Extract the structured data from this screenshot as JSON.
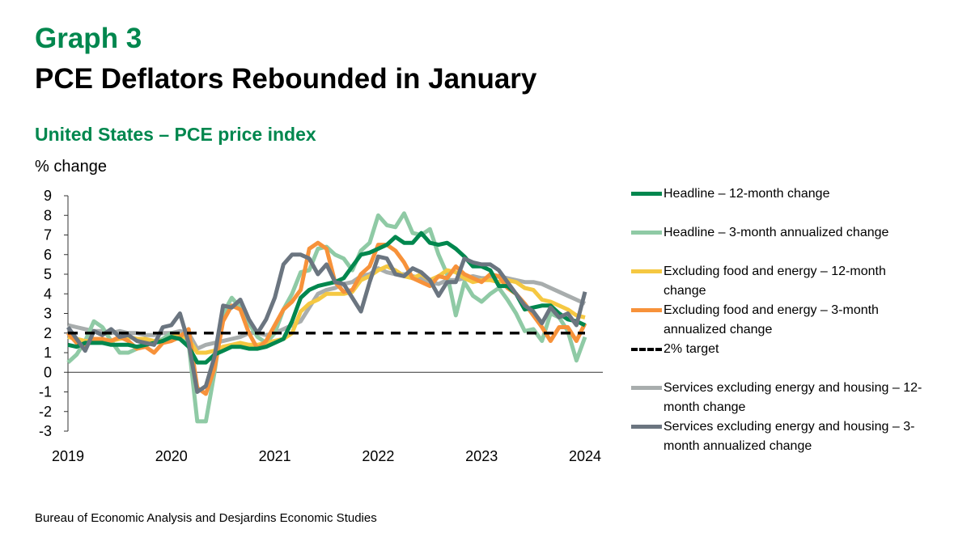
{
  "header": {
    "graph_label": "Graph 3",
    "title": "PCE Deflators Rebounded in January",
    "subtitle": "United States – PCE price index",
    "unit": "% change"
  },
  "footer": {
    "source": "Bureau of Economic Analysis and Desjardins Economic Studies"
  },
  "chart_data": {
    "type": "line",
    "x_start": "2019-01",
    "frequency": "monthly",
    "xticks": [
      "2019",
      "2020",
      "2021",
      "2022",
      "2023",
      "2024"
    ],
    "yticks": [
      "9",
      "8",
      "7",
      "6",
      "5",
      "4",
      "3",
      "2",
      "1",
      "0",
      "-1",
      "-2",
      "-3"
    ],
    "ylim": [
      -3,
      9
    ],
    "grid": false,
    "legend_placement": "right",
    "series": [
      {
        "name": "Headline – 12-month change",
        "color": "#00874e",
        "values": [
          1.4,
          1.3,
          1.5,
          1.5,
          1.5,
          1.4,
          1.4,
          1.4,
          1.3,
          1.4,
          1.5,
          1.6,
          1.8,
          1.7,
          1.3,
          0.5,
          0.5,
          0.9,
          1.1,
          1.3,
          1.3,
          1.2,
          1.2,
          1.3,
          1.5,
          1.7,
          2.6,
          3.8,
          4.2,
          4.4,
          4.5,
          4.6,
          4.8,
          5.4,
          6.0,
          6.1,
          6.3,
          6.5,
          6.9,
          6.6,
          6.6,
          7.1,
          6.6,
          6.5,
          6.6,
          6.3,
          5.9,
          5.4,
          5.4,
          5.2,
          4.4,
          4.4,
          4.0,
          3.2,
          3.3,
          3.4,
          3.4,
          3.0,
          2.7,
          2.6,
          2.4
        ]
      },
      {
        "name": "Headline – 3-month annualized change",
        "color": "#8fcaa5",
        "values": [
          0.5,
          0.9,
          1.6,
          2.6,
          2.3,
          1.6,
          1.0,
          1.0,
          1.2,
          1.5,
          1.5,
          1.7,
          2.0,
          1.8,
          1.5,
          -2.5,
          -2.5,
          0.0,
          3.0,
          3.8,
          3.3,
          2.5,
          1.8,
          1.5,
          2.0,
          3.2,
          4.0,
          5.1,
          5.2,
          6.3,
          6.4,
          6.0,
          5.8,
          5.2,
          6.2,
          6.6,
          8.0,
          7.5,
          7.4,
          8.1,
          7.1,
          7.0,
          7.3,
          6.0,
          5.0,
          2.9,
          4.6,
          3.9,
          3.6,
          4.0,
          4.3,
          3.7,
          3.0,
          2.1,
          2.2,
          1.6,
          3.0,
          2.8,
          2.1,
          0.6,
          1.8
        ]
      },
      {
        "name": "Excluding food and energy – 12-month change",
        "color": "#f5c842",
        "values": [
          1.8,
          1.7,
          1.6,
          1.6,
          1.6,
          1.6,
          1.7,
          1.8,
          1.7,
          1.7,
          1.6,
          1.6,
          1.8,
          1.9,
          1.7,
          1.0,
          1.0,
          1.1,
          1.3,
          1.4,
          1.5,
          1.4,
          1.4,
          1.5,
          1.6,
          1.7,
          2.0,
          3.1,
          3.5,
          3.7,
          4.0,
          4.0,
          4.0,
          4.1,
          4.7,
          4.9,
          5.2,
          5.4,
          5.2,
          4.9,
          4.8,
          5.0,
          4.7,
          4.9,
          5.2,
          5.1,
          4.8,
          4.6,
          4.7,
          4.7,
          4.6,
          4.7,
          4.6,
          4.3,
          4.2,
          3.7,
          3.6,
          3.4,
          3.2,
          2.9,
          2.8
        ]
      },
      {
        "name": "Excluding food and energy – 3-month annualized change",
        "color": "#f7923a",
        "values": [
          2.0,
          1.5,
          1.3,
          1.7,
          1.7,
          1.6,
          1.8,
          1.6,
          1.2,
          1.3,
          1.0,
          1.5,
          1.6,
          1.8,
          2.2,
          -0.8,
          -1.1,
          0.2,
          2.6,
          3.4,
          3.2,
          2.0,
          1.2,
          1.6,
          2.4,
          3.2,
          3.6,
          4.2,
          6.3,
          6.6,
          6.3,
          4.6,
          4.1,
          4.2,
          5.0,
          5.4,
          6.5,
          6.5,
          6.2,
          5.6,
          4.8,
          4.6,
          4.4,
          4.9,
          4.8,
          5.4,
          5.0,
          4.8,
          4.6,
          5.0,
          4.9,
          4.3,
          4.0,
          3.5,
          2.9,
          2.3,
          1.6,
          2.3,
          2.3,
          1.6,
          2.5
        ]
      },
      {
        "name": "2% target",
        "color": "#000000",
        "dashed": true,
        "values": [
          2
        ]
      },
      {
        "name": "Services excluding energy and housing – 12-month change",
        "color": "#a8adad",
        "values": [
          2.4,
          2.3,
          2.2,
          2.1,
          2.1,
          2.0,
          2.1,
          2.0,
          2.0,
          1.9,
          1.9,
          2.0,
          2.0,
          2.1,
          2.0,
          1.2,
          1.4,
          1.5,
          1.6,
          1.7,
          1.8,
          2.0,
          2.0,
          1.9,
          2.0,
          2.2,
          2.4,
          2.6,
          3.3,
          4.0,
          4.2,
          4.3,
          4.5,
          4.6,
          4.9,
          5.0,
          5.3,
          5.1,
          5.0,
          5.0,
          4.9,
          4.8,
          4.6,
          4.5,
          4.7,
          4.7,
          4.8,
          4.9,
          4.8,
          4.8,
          4.9,
          4.8,
          4.7,
          4.6,
          4.6,
          4.5,
          4.3,
          4.1,
          3.9,
          3.7,
          3.5
        ]
      },
      {
        "name": "Services excluding energy and housing – 3-month annualized change",
        "color": "#6b7580",
        "values": [
          2.3,
          1.7,
          1.1,
          2.1,
          1.9,
          2.2,
          1.8,
          1.9,
          1.6,
          1.5,
          1.4,
          2.3,
          2.4,
          3.0,
          1.5,
          -1.0,
          -0.7,
          0.8,
          3.4,
          3.3,
          3.7,
          2.7,
          2.0,
          2.7,
          3.8,
          5.5,
          6.0,
          6.0,
          5.8,
          5.0,
          5.5,
          4.6,
          4.5,
          3.8,
          3.1,
          4.6,
          5.9,
          5.8,
          5.0,
          4.9,
          5.3,
          5.1,
          4.7,
          3.9,
          4.6,
          4.6,
          5.8,
          5.6,
          5.5,
          5.5,
          5.2,
          4.6,
          4.0,
          3.4,
          3.1,
          2.5,
          3.3,
          2.8,
          3.0,
          2.4,
          4.1
        ]
      }
    ]
  }
}
